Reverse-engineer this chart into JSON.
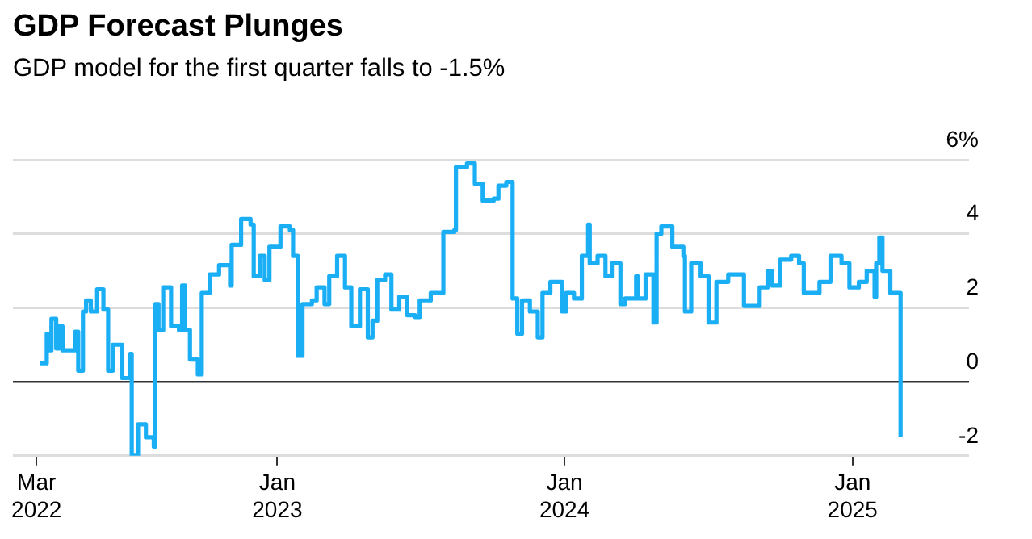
{
  "chart_data": {
    "type": "step",
    "title": "GDP Forecast Plunges",
    "subtitle": "GDP model for the first quarter falls to -1.5%",
    "series": [
      {
        "color": "#1aaef5",
        "x": [
          "2022-03-05",
          "2022-03-14",
          "2022-03-18",
          "2022-03-20",
          "2022-03-26",
          "2022-03-30",
          "2022-04-03",
          "2022-04-15",
          "2022-04-19",
          "2022-04-23",
          "2022-04-29",
          "2022-05-03",
          "2022-05-09",
          "2022-05-17",
          "2022-05-25",
          "2022-05-31",
          "2022-06-06",
          "2022-06-18",
          "2022-06-28",
          "2022-06-30",
          "2022-07-08",
          "2022-07-18",
          "2022-07-28",
          "2022-07-30",
          "2022-08-03",
          "2022-08-09",
          "2022-08-17",
          "2022-08-19",
          "2022-08-29",
          "2022-09-02",
          "2022-09-06",
          "2022-09-12",
          "2022-09-22",
          "2022-09-27",
          "2022-10-07",
          "2022-10-19",
          "2022-11-02",
          "2022-11-04",
          "2022-11-16",
          "2022-11-28",
          "2022-12-02",
          "2022-12-10",
          "2022-12-16",
          "2022-12-22",
          "2023-01-05",
          "2023-01-17",
          "2023-01-21",
          "2023-01-27",
          "2023-02-02",
          "2023-02-14",
          "2023-02-20",
          "2023-03-02",
          "2023-03-08",
          "2023-03-18",
          "2023-03-28",
          "2023-04-05",
          "2023-04-16",
          "2023-04-26",
          "2023-05-02",
          "2023-05-08",
          "2023-05-18",
          "2023-05-26",
          "2023-06-05",
          "2023-06-15",
          "2023-06-25",
          "2023-07-01",
          "2023-07-15",
          "2023-07-27",
          "2023-07-31",
          "2023-08-14",
          "2023-08-16",
          "2023-08-30",
          "2023-09-09",
          "2023-09-19",
          "2023-10-03",
          "2023-10-09",
          "2023-10-19",
          "2023-10-25",
          "2023-10-27",
          "2023-11-02",
          "2023-11-08",
          "2023-11-18",
          "2023-11-28",
          "2023-12-04",
          "2023-12-14",
          "2023-12-29",
          "2024-01-03",
          "2024-01-13",
          "2024-01-23",
          "2024-01-31",
          "2024-02-02",
          "2024-02-12",
          "2024-02-22",
          "2024-03-01",
          "2024-03-12",
          "2024-03-18",
          "2024-04-01",
          "2024-04-03",
          "2024-04-13",
          "2024-04-23",
          "2024-04-27",
          "2024-05-03",
          "2024-05-13",
          "2024-05-17",
          "2024-05-31",
          "2024-06-02",
          "2024-06-10",
          "2024-06-22",
          "2024-07-02",
          "2024-07-12",
          "2024-07-27",
          "2024-08-12",
          "2024-08-16",
          "2024-09-05",
          "2024-09-15",
          "2024-09-21",
          "2024-10-01",
          "2024-10-15",
          "2024-10-25",
          "2024-10-31",
          "2024-11-20",
          "2024-12-04",
          "2024-12-18",
          "2024-12-28",
          "2025-01-09",
          "2025-01-19",
          "2025-01-29",
          "2025-01-31",
          "2025-02-04",
          "2025-02-08",
          "2025-02-18",
          "2025-03-03"
        ],
        "values": [
          0.5,
          1.3,
          0.85,
          1.7,
          0.9,
          1.5,
          0.85,
          0.85,
          1.35,
          0.3,
          1.9,
          2.2,
          1.9,
          2.5,
          1.95,
          0.3,
          1.0,
          0.1,
          0.75,
          -2.0,
          -1.15,
          -1.5,
          -1.75,
          2.1,
          1.4,
          2.55,
          2.55,
          1.5,
          1.4,
          2.6,
          1.4,
          0.6,
          0.2,
          2.4,
          2.9,
          3.15,
          2.6,
          3.7,
          4.4,
          4.25,
          2.85,
          3.4,
          2.75,
          3.65,
          4.2,
          4.1,
          3.4,
          0.7,
          2.1,
          2.2,
          2.55,
          2.1,
          2.85,
          3.4,
          2.55,
          1.5,
          2.5,
          1.2,
          1.65,
          2.75,
          2.9,
          1.95,
          2.3,
          1.8,
          1.75,
          2.2,
          2.4,
          2.4,
          4.05,
          4.1,
          5.8,
          5.9,
          5.35,
          4.9,
          4.95,
          5.3,
          5.4,
          5.4,
          2.25,
          1.3,
          2.2,
          1.9,
          1.2,
          2.4,
          2.7,
          1.9,
          2.4,
          2.25,
          3.4,
          4.25,
          3.2,
          3.4,
          2.85,
          3.2,
          2.1,
          2.25,
          2.85,
          2.25,
          2.9,
          1.6,
          4.0,
          4.2,
          4.2,
          3.65,
          3.4,
          1.9,
          3.2,
          2.85,
          1.6,
          2.7,
          2.9,
          2.9,
          2.05,
          2.55,
          3.0,
          2.6,
          3.3,
          3.4,
          3.2,
          2.4,
          2.7,
          3.4,
          3.2,
          2.55,
          2.7,
          3.0,
          2.3,
          3.2,
          3.9,
          3.0,
          2.4,
          -1.5
        ]
      }
    ],
    "xlim": [
      "2022-01-30",
      "2025-05-29"
    ],
    "xticks": [
      {
        "value": "2022-03-01",
        "label": "Mar 2022"
      },
      {
        "value": "2023-01-01",
        "label": "Jan 2023"
      },
      {
        "value": "2024-01-01",
        "label": "Jan 2024"
      },
      {
        "value": "2025-01-01",
        "label": "Jan 2025"
      }
    ],
    "ylim": [
      -2,
      6
    ],
    "yticks": [
      -2,
      0,
      2,
      4,
      {
        "value": 6,
        "label": "6%"
      }
    ],
    "grid": "y",
    "legend": false,
    "marker": "none",
    "line_style": "solid"
  }
}
